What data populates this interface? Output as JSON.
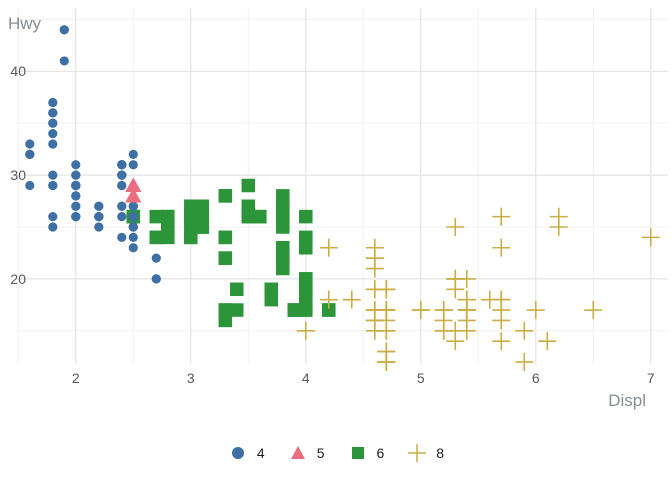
{
  "chart_data": {
    "type": "scatter",
    "title": "",
    "xlabel": "Displ",
    "ylabel": "Hwy",
    "xlim": [
      1.48,
      7.15
    ],
    "ylim": [
      11.8,
      46.1
    ],
    "x_ticks": [
      2,
      3,
      4,
      5,
      6,
      7
    ],
    "x_minor_ticks": [
      1.5,
      2.5,
      3.5,
      4.5,
      5.5,
      6.5
    ],
    "y_ticks": [
      20,
      30,
      40
    ],
    "y_minor_ticks": [
      15,
      25,
      35,
      45
    ],
    "grid": true,
    "legend_position": "bottom",
    "background_color": "#ffffff",
    "major_grid_color": "#e3e3e3",
    "minor_grid_color": "#f1f1f1",
    "axis_text_color": "#55595f",
    "axis_title_color": "#878e95",
    "legend_text_color": "#1c1c1c",
    "draw_order": [
      2,
      0,
      3,
      1
    ],
    "series": [
      {
        "name": "4",
        "shape": "circle",
        "color": "#3E70A6",
        "points": [
          [
            1.6,
            33
          ],
          [
            1.6,
            32
          ],
          [
            1.6,
            32
          ],
          [
            1.6,
            29
          ],
          [
            1.6,
            32
          ],
          [
            1.8,
            29
          ],
          [
            1.8,
            29
          ],
          [
            1.8,
            26
          ],
          [
            1.8,
            25
          ],
          [
            1.8,
            34
          ],
          [
            1.8,
            36
          ],
          [
            1.8,
            36
          ],
          [
            1.8,
            30
          ],
          [
            1.8,
            33
          ],
          [
            1.8,
            35
          ],
          [
            1.8,
            35
          ],
          [
            1.8,
            37
          ],
          [
            1.9,
            44
          ],
          [
            1.9,
            44
          ],
          [
            1.9,
            41
          ],
          [
            2.0,
            31
          ],
          [
            2.0,
            30
          ],
          [
            2.0,
            28
          ],
          [
            2.0,
            27
          ],
          [
            2.0,
            29
          ],
          [
            2.0,
            26
          ],
          [
            2.0,
            27
          ],
          [
            2.0,
            30
          ],
          [
            2.0,
            29
          ],
          [
            2.0,
            26
          ],
          [
            2.0,
            29
          ],
          [
            2.0,
            29
          ],
          [
            2.0,
            26
          ],
          [
            2.0,
            29
          ],
          [
            2.0,
            28
          ],
          [
            2.0,
            29
          ],
          [
            2.2,
            26
          ],
          [
            2.2,
            27
          ],
          [
            2.2,
            26
          ],
          [
            2.2,
            27
          ],
          [
            2.2,
            25
          ],
          [
            2.2,
            26
          ],
          [
            2.4,
            27
          ],
          [
            2.4,
            30
          ],
          [
            2.4,
            24
          ],
          [
            2.4,
            26
          ],
          [
            2.4,
            27
          ],
          [
            2.4,
            30
          ],
          [
            2.4,
            31
          ],
          [
            2.4,
            29
          ],
          [
            2.4,
            29
          ],
          [
            2.4,
            30
          ],
          [
            2.4,
            31
          ],
          [
            2.4,
            31
          ],
          [
            2.4,
            31
          ],
          [
            2.5,
            31
          ],
          [
            2.5,
            32
          ],
          [
            2.5,
            26
          ],
          [
            2.5,
            27
          ],
          [
            2.5,
            25
          ],
          [
            2.5,
            27
          ],
          [
            2.5,
            25
          ],
          [
            2.5,
            26
          ],
          [
            2.5,
            23
          ],
          [
            2.5,
            24
          ],
          [
            2.5,
            25
          ],
          [
            2.5,
            26
          ],
          [
            2.5,
            27
          ],
          [
            2.7,
            20
          ],
          [
            2.7,
            20
          ],
          [
            2.7,
            22
          ]
        ]
      },
      {
        "name": "5",
        "shape": "triangle",
        "color": "#EA6D7F",
        "points": [
          [
            2.5,
            28
          ],
          [
            2.5,
            29
          ],
          [
            2.5,
            29
          ],
          [
            2.5,
            28
          ]
        ]
      },
      {
        "name": "6",
        "shape": "square",
        "color": "#2C9439",
        "points": [
          [
            2.5,
            26
          ],
          [
            2.5,
            26
          ],
          [
            2.7,
            26
          ],
          [
            2.7,
            24
          ],
          [
            2.7,
            24
          ],
          [
            2.8,
            26
          ],
          [
            2.8,
            26
          ],
          [
            2.8,
            25
          ],
          [
            2.8,
            25
          ],
          [
            2.8,
            24
          ],
          [
            3.0,
            24
          ],
          [
            3.0,
            24
          ],
          [
            3.0,
            26
          ],
          [
            3.0,
            25
          ],
          [
            3.0,
            26
          ],
          [
            3.0,
            26
          ],
          [
            3.0,
            26
          ],
          [
            3.0,
            27
          ],
          [
            3.1,
            27
          ],
          [
            3.1,
            25
          ],
          [
            3.1,
            25
          ],
          [
            3.1,
            25
          ],
          [
            3.1,
            26
          ],
          [
            3.3,
            22
          ],
          [
            3.3,
            22
          ],
          [
            3.3,
            24
          ],
          [
            3.3,
            24
          ],
          [
            3.3,
            17
          ],
          [
            3.3,
            17
          ],
          [
            3.3,
            16
          ],
          [
            3.3,
            28
          ],
          [
            3.3,
            28
          ],
          [
            3.4,
            19
          ],
          [
            3.4,
            17
          ],
          [
            3.5,
            29
          ],
          [
            3.5,
            27
          ],
          [
            3.5,
            26
          ],
          [
            3.5,
            26
          ],
          [
            3.6,
            26
          ],
          [
            3.6,
            26
          ],
          [
            3.7,
            19
          ],
          [
            3.7,
            18
          ],
          [
            3.7,
            19
          ],
          [
            3.8,
            26
          ],
          [
            3.8,
            25
          ],
          [
            3.8,
            26
          ],
          [
            3.8,
            27
          ],
          [
            3.8,
            28
          ],
          [
            3.8,
            22
          ],
          [
            3.8,
            21
          ],
          [
            3.8,
            23
          ],
          [
            3.9,
            17
          ],
          [
            3.9,
            17
          ],
          [
            3.9,
            17
          ],
          [
            4.0,
            26
          ],
          [
            4.0,
            24
          ],
          [
            4.0,
            23
          ],
          [
            4.0,
            17
          ],
          [
            4.0,
            19
          ],
          [
            4.0,
            17
          ],
          [
            4.0,
            19
          ],
          [
            4.0,
            20
          ],
          [
            4.0,
            18
          ],
          [
            4.0,
            20
          ],
          [
            4.0,
            18
          ],
          [
            4.2,
            17
          ],
          [
            4.2,
            17
          ]
        ]
      },
      {
        "name": "8",
        "shape": "plus",
        "color": "#C9AE45",
        "points": [
          [
            4.0,
            15
          ],
          [
            4.2,
            23
          ],
          [
            4.2,
            18
          ],
          [
            4.4,
            18
          ],
          [
            4.6,
            15
          ],
          [
            4.6,
            21
          ],
          [
            4.6,
            22
          ],
          [
            4.6,
            23
          ],
          [
            4.6,
            22
          ],
          [
            4.6,
            17
          ],
          [
            4.6,
            19
          ],
          [
            4.6,
            19
          ],
          [
            4.6,
            16
          ],
          [
            4.6,
            16
          ],
          [
            4.6,
            17
          ],
          [
            4.7,
            19
          ],
          [
            4.7,
            19
          ],
          [
            4.7,
            12
          ],
          [
            4.7,
            17
          ],
          [
            4.7,
            12
          ],
          [
            4.7,
            17
          ],
          [
            4.7,
            17
          ],
          [
            4.7,
            15
          ],
          [
            4.7,
            13
          ],
          [
            4.7,
            13
          ],
          [
            4.7,
            17
          ],
          [
            4.7,
            16
          ],
          [
            4.7,
            12
          ],
          [
            4.7,
            17
          ],
          [
            4.7,
            19
          ],
          [
            4.7,
            15
          ],
          [
            5.0,
            17
          ],
          [
            5.0,
            17
          ],
          [
            5.2,
            17
          ],
          [
            5.2,
            15
          ],
          [
            5.2,
            17
          ],
          [
            5.2,
            15
          ],
          [
            5.2,
            16
          ],
          [
            5.3,
            20
          ],
          [
            5.3,
            15
          ],
          [
            5.3,
            20
          ],
          [
            5.3,
            14
          ],
          [
            5.3,
            19
          ],
          [
            5.3,
            25
          ],
          [
            5.4,
            17
          ],
          [
            5.4,
            17
          ],
          [
            5.4,
            18
          ],
          [
            5.4,
            15
          ],
          [
            5.4,
            17
          ],
          [
            5.4,
            17
          ],
          [
            5.4,
            16
          ],
          [
            5.4,
            18
          ],
          [
            5.4,
            20
          ],
          [
            5.6,
            18
          ],
          [
            5.7,
            17
          ],
          [
            5.7,
            26
          ],
          [
            5.7,
            23
          ],
          [
            5.7,
            18
          ],
          [
            5.7,
            16
          ],
          [
            5.7,
            14
          ],
          [
            5.7,
            18
          ],
          [
            5.7,
            18
          ],
          [
            5.9,
            15
          ],
          [
            5.9,
            12
          ],
          [
            6.0,
            17
          ],
          [
            6.1,
            14
          ],
          [
            6.2,
            26
          ],
          [
            6.2,
            25
          ],
          [
            6.5,
            17
          ],
          [
            7.0,
            24
          ]
        ]
      }
    ]
  }
}
